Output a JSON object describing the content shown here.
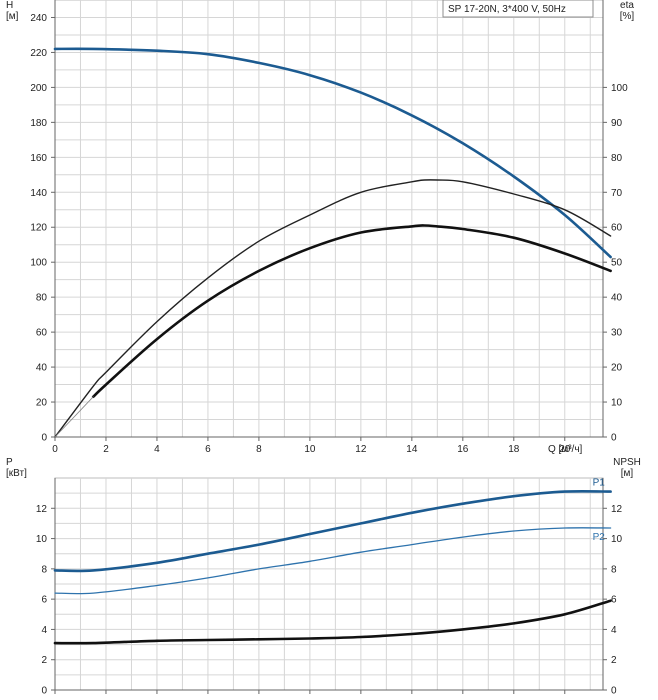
{
  "chart_data": [
    {
      "type": "line",
      "title": "SP 17-20N, 3*400 V, 50Hz",
      "xlabel": "Q [м³/ч]",
      "ylabel": "H\n[м]",
      "y2label": "eta\n[%]",
      "xlim": [
        0,
        21.5
      ],
      "ylim": [
        0,
        250
      ],
      "y2lim": [
        0,
        125
      ],
      "xticks": [
        0,
        2,
        4,
        6,
        8,
        10,
        12,
        14,
        16,
        18,
        20
      ],
      "yticks": [
        0,
        20,
        40,
        60,
        80,
        100,
        120,
        140,
        160,
        180,
        200,
        220,
        240
      ],
      "y2ticks": [
        0,
        10,
        20,
        30,
        40,
        50,
        60,
        70,
        80,
        90,
        100
      ],
      "grid": true,
      "series": [
        {
          "color": "#1c5b91",
          "width": 2.6,
          "axis": "left",
          "x": [
            0,
            1.5,
            4,
            6,
            8,
            10,
            12,
            14,
            16,
            18,
            20,
            21.8
          ],
          "y": [
            222,
            222,
            221,
            219,
            214,
            207,
            197,
            184,
            168,
            149,
            127,
            103
          ]
        },
        {
          "color": "#1c5b91",
          "width": 0.9,
          "axis": "left",
          "x": [
            0,
            1.5
          ],
          "y": [
            222,
            222
          ]
        },
        {
          "color": "#222222",
          "width": 1.4,
          "axis": "right",
          "x": [
            0,
            1.5,
            2,
            4,
            6,
            8,
            10,
            12,
            14,
            14.5,
            15,
            16,
            18,
            20,
            21.8
          ],
          "y": [
            0,
            14.5,
            18.5,
            33,
            45.5,
            56,
            63.5,
            70,
            73,
            73.5,
            73.5,
            73,
            69.5,
            65,
            57.5
          ]
        },
        {
          "color": "#111111",
          "width": 2.6,
          "axis": "left",
          "x": [
            1.5,
            2,
            4,
            6,
            8,
            10,
            12,
            14,
            14.5,
            15,
            16,
            18,
            20,
            21.8
          ],
          "y": [
            23,
            30,
            56,
            78,
            95,
            108,
            117,
            120.5,
            121,
            120.5,
            119,
            114,
            105,
            95
          ]
        },
        {
          "color": "#888888",
          "width": 0.8,
          "axis": "left",
          "x": [
            0,
            1.5
          ],
          "y": [
            0,
            23
          ]
        }
      ]
    },
    {
      "type": "line",
      "xlabel": "",
      "ylabel": "P\n[кВт]",
      "y2label": "NPSH\n[м]",
      "xlim": [
        0,
        21.5
      ],
      "ylim": [
        0,
        14
      ],
      "y2lim": [
        0,
        14
      ],
      "yticks": [
        0,
        2,
        4,
        6,
        8,
        10,
        12
      ],
      "y2ticks": [
        0,
        2,
        4,
        6,
        8,
        10,
        12
      ],
      "grid": true,
      "series": [
        {
          "name": "P1",
          "color": "#1c5b91",
          "width": 2.6,
          "axis": "left",
          "x": [
            0,
            1.5,
            4,
            6,
            8,
            10,
            12,
            14,
            16,
            18,
            20,
            21.8
          ],
          "y": [
            7.9,
            7.9,
            8.4,
            9.0,
            9.6,
            10.3,
            11.0,
            11.7,
            12.3,
            12.8,
            13.1,
            13.1
          ]
        },
        {
          "name": "P2",
          "color": "#2e73ad",
          "width": 1.3,
          "axis": "left",
          "x": [
            0,
            1.5,
            4,
            6,
            8,
            10,
            12,
            14,
            16,
            18,
            20,
            21.8
          ],
          "y": [
            6.4,
            6.4,
            6.9,
            7.4,
            8.0,
            8.5,
            9.1,
            9.6,
            10.1,
            10.5,
            10.7,
            10.7
          ]
        },
        {
          "color": "#111111",
          "width": 2.6,
          "axis": "right",
          "x": [
            0,
            1.5,
            4,
            6,
            8,
            10,
            12,
            14,
            16,
            18,
            20,
            21.8
          ],
          "y": [
            3.1,
            3.1,
            3.25,
            3.3,
            3.35,
            3.4,
            3.5,
            3.7,
            4.0,
            4.4,
            5.0,
            5.9
          ]
        }
      ]
    }
  ]
}
